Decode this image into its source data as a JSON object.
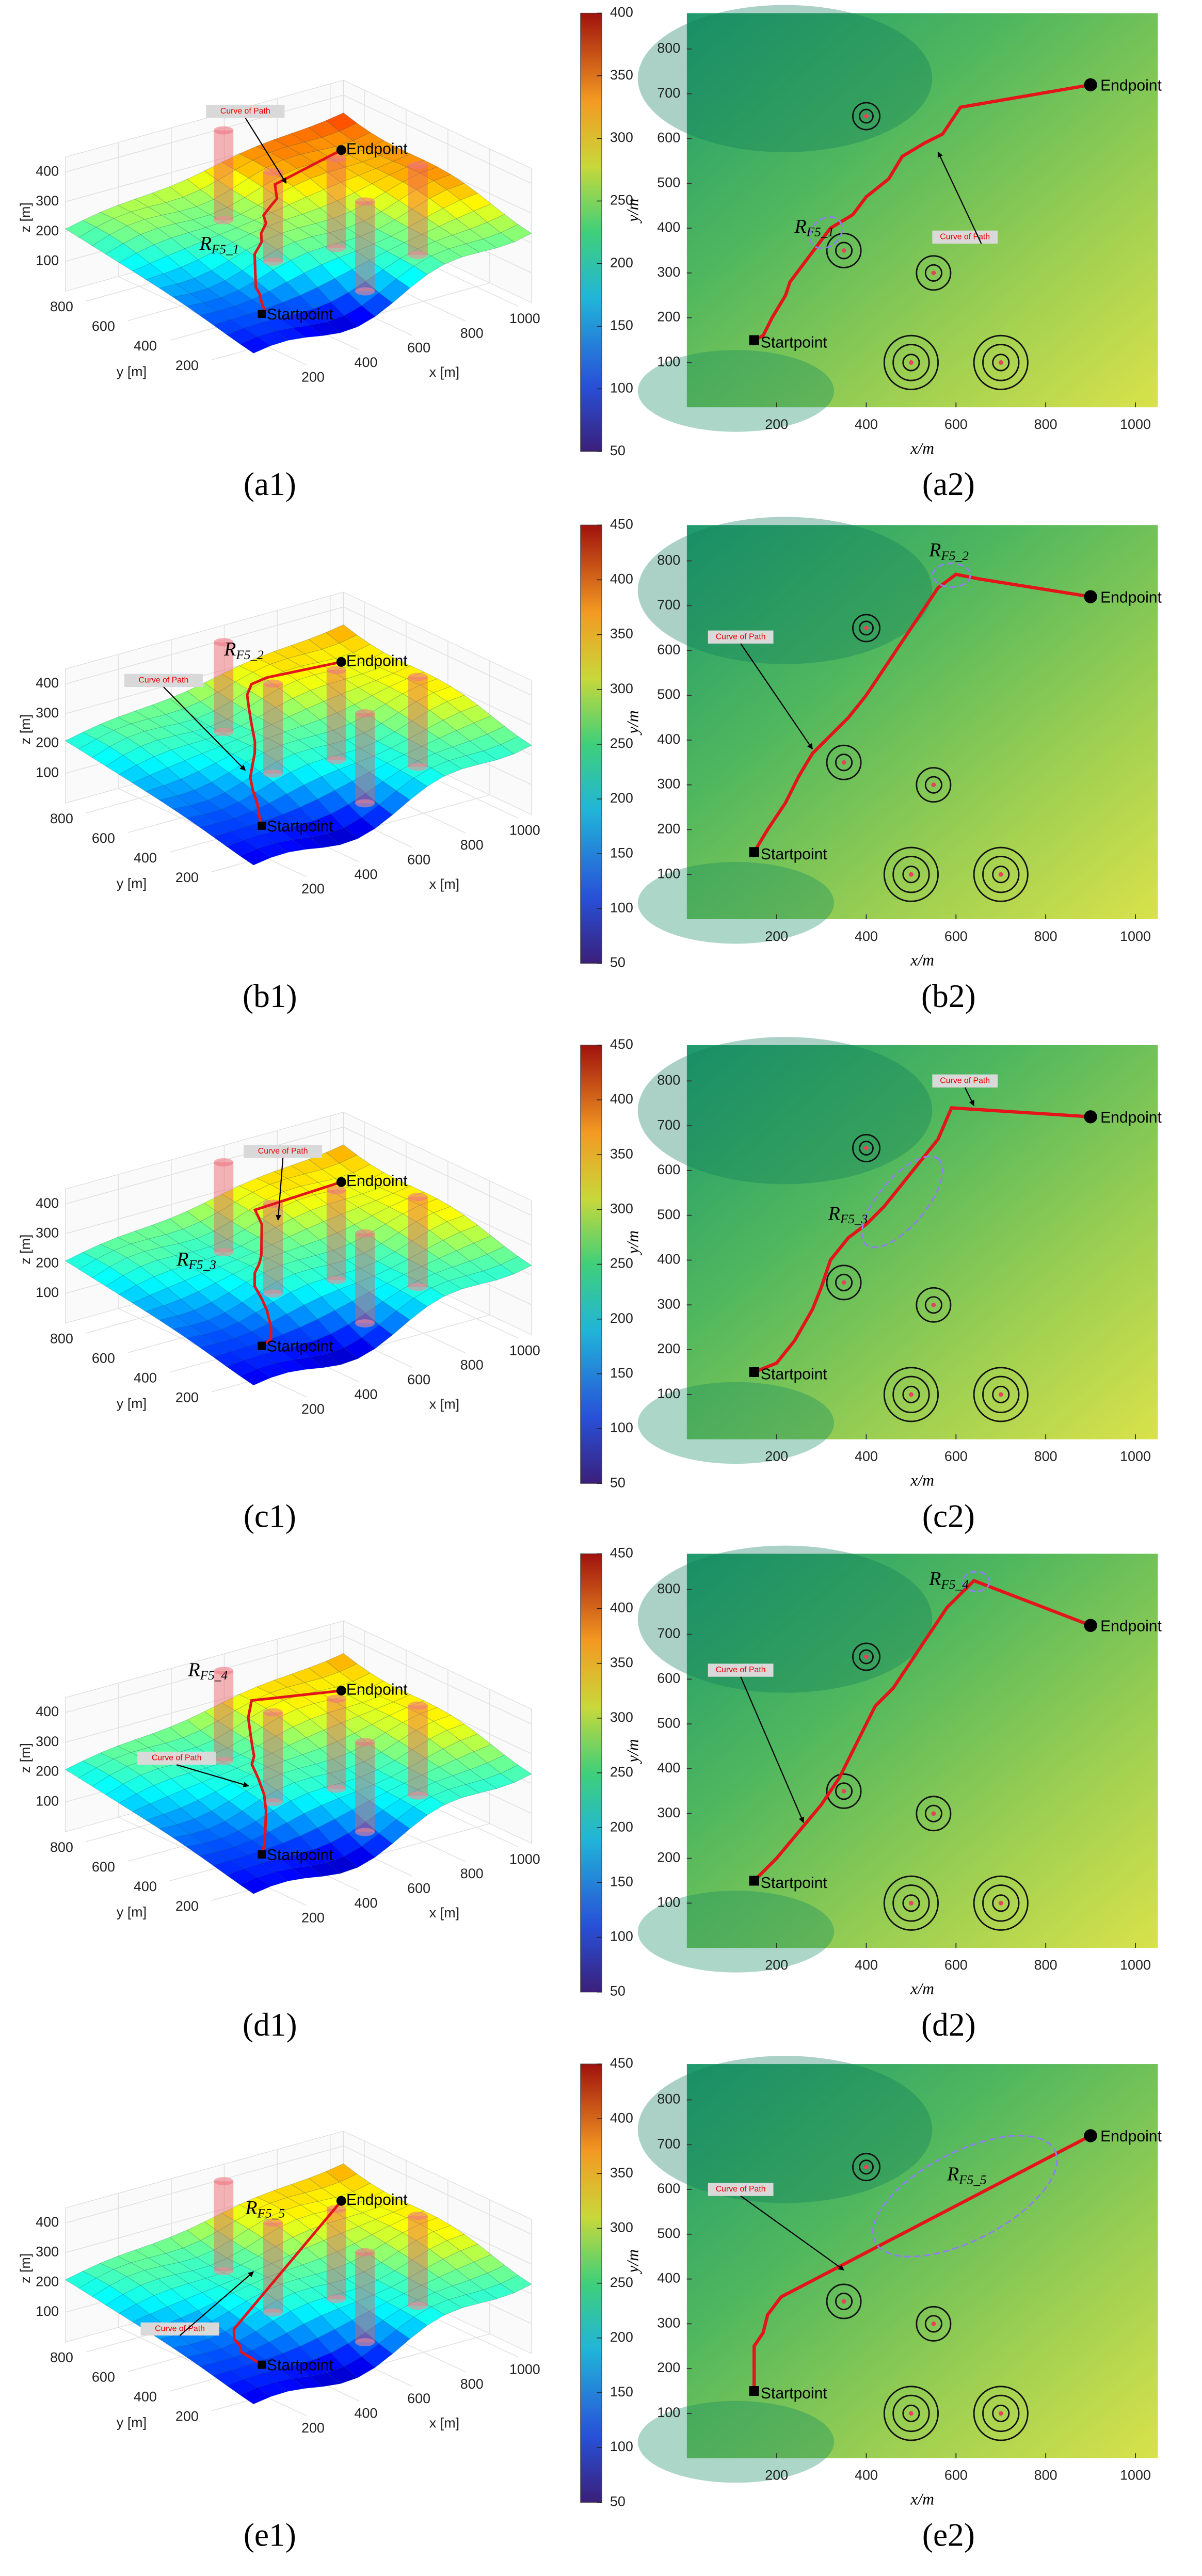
{
  "chart_data": [
    {
      "type": "surface3d",
      "caption": "(a1)",
      "xlabel": "x [m]",
      "ylabel": "y [m]",
      "zlabel": "z [m]",
      "xlim": [
        0,
        1050
      ],
      "ylim": [
        0,
        900
      ],
      "zlim": [
        0,
        450
      ],
      "xticks": [
        200,
        400,
        600,
        800,
        1000
      ],
      "yticks": [
        200,
        400,
        600,
        800
      ],
      "zticks": [
        100,
        200,
        300,
        400
      ],
      "clim": [
        50,
        400
      ],
      "colorbar_ticks": [
        50,
        100,
        150,
        200,
        250,
        300,
        350,
        400
      ],
      "start_label": "Startpoint",
      "end_label": "Endpoint",
      "curve_label": "Curve of Path",
      "highlight": "R",
      "highlight_sub": "F5_1"
    },
    {
      "type": "map2d",
      "caption": "(a2)",
      "xlabel": "x/m",
      "ylabel": "y/m",
      "xlim": [
        0,
        1050
      ],
      "ylim": [
        0,
        880
      ],
      "xticks": [
        200,
        400,
        600,
        800,
        1000
      ],
      "yticks": [
        100,
        200,
        300,
        400,
        500,
        600,
        700,
        800
      ],
      "path_x": [
        150,
        170,
        190,
        220,
        230,
        260,
        290,
        320,
        370,
        400,
        450,
        480,
        530,
        570,
        610,
        900
      ],
      "path_y": [
        150,
        160,
        200,
        250,
        280,
        320,
        360,
        400,
        430,
        470,
        510,
        560,
        590,
        610,
        670,
        720
      ],
      "threats": [
        {
          "x": 400,
          "y": 650,
          "r": [
            15,
            30
          ]
        },
        {
          "x": 350,
          "y": 350,
          "r": [
            18,
            38
          ]
        },
        {
          "x": 550,
          "y": 300,
          "r": [
            18,
            38
          ]
        },
        {
          "x": 500,
          "y": 100,
          "r": [
            18,
            40,
            60
          ]
        },
        {
          "x": 700,
          "y": 100,
          "r": [
            18,
            40,
            60
          ]
        }
      ],
      "start_label": "Startpoint",
      "end_label": "Endpoint",
      "curve_label": "Curve of Path",
      "highlight": "R",
      "highlight_sub": "F5_1"
    },
    {
      "type": "surface3d",
      "caption": "(b1)",
      "xlabel": "x [m]",
      "ylabel": "y [m]",
      "zlabel": "z [m]",
      "xlim": [
        0,
        1050
      ],
      "ylim": [
        0,
        900
      ],
      "zlim": [
        0,
        450
      ],
      "xticks": [
        200,
        400,
        600,
        800,
        1000
      ],
      "yticks": [
        200,
        400,
        600,
        800
      ],
      "zticks": [
        100,
        200,
        300,
        400
      ],
      "clim": [
        50,
        450
      ],
      "colorbar_ticks": [
        50,
        100,
        150,
        200,
        250,
        300,
        350,
        400,
        450
      ],
      "start_label": "Startpoint",
      "end_label": "Endpoint",
      "curve_label": "Curve of Path",
      "highlight": "R",
      "highlight_sub": "F5_2"
    },
    {
      "type": "map2d",
      "caption": "(b2)",
      "xlabel": "x/m",
      "ylabel": "y/m",
      "xlim": [
        0,
        1050
      ],
      "ylim": [
        0,
        880
      ],
      "xticks": [
        200,
        400,
        600,
        800,
        1000
      ],
      "yticks": [
        100,
        200,
        300,
        400,
        500,
        600,
        700,
        800
      ],
      "path_x": [
        150,
        180,
        220,
        250,
        280,
        320,
        360,
        400,
        440,
        480,
        520,
        560,
        600,
        650,
        900
      ],
      "path_y": [
        150,
        200,
        260,
        320,
        370,
        410,
        450,
        500,
        560,
        620,
        680,
        740,
        770,
        760,
        720
      ],
      "threats": [
        {
          "x": 400,
          "y": 650,
          "r": [
            15,
            30
          ]
        },
        {
          "x": 350,
          "y": 350,
          "r": [
            18,
            38
          ]
        },
        {
          "x": 550,
          "y": 300,
          "r": [
            18,
            38
          ]
        },
        {
          "x": 500,
          "y": 100,
          "r": [
            18,
            40,
            60
          ]
        },
        {
          "x": 700,
          "y": 100,
          "r": [
            18,
            40,
            60
          ]
        }
      ],
      "start_label": "Startpoint",
      "end_label": "Endpoint",
      "curve_label": "Curve of Path",
      "highlight": "R",
      "highlight_sub": "F5_2"
    },
    {
      "type": "surface3d",
      "caption": "(c1)",
      "xlabel": "x [m]",
      "ylabel": "y [m]",
      "zlabel": "z [m]",
      "xlim": [
        0,
        1050
      ],
      "ylim": [
        0,
        900
      ],
      "zlim": [
        0,
        450
      ],
      "xticks": [
        200,
        400,
        600,
        800,
        1000
      ],
      "yticks": [
        200,
        400,
        600,
        800
      ],
      "zticks": [
        100,
        200,
        300,
        400
      ],
      "clim": [
        50,
        450
      ],
      "colorbar_ticks": [
        50,
        100,
        150,
        200,
        250,
        300,
        350,
        400,
        450
      ],
      "start_label": "Startpoint",
      "end_label": "Endpoint",
      "curve_label": "Curve of Path",
      "highlight": "R",
      "highlight_sub": "F5_3"
    },
    {
      "type": "map2d",
      "caption": "(c2)",
      "xlabel": "x/m",
      "ylabel": "y/m",
      "xlim": [
        0,
        1050
      ],
      "ylim": [
        0,
        880
      ],
      "xticks": [
        200,
        400,
        600,
        800,
        1000
      ],
      "yticks": [
        100,
        200,
        300,
        400,
        500,
        600,
        700,
        800
      ],
      "path_x": [
        150,
        200,
        240,
        280,
        300,
        320,
        360,
        400,
        440,
        480,
        520,
        560,
        590,
        900
      ],
      "path_y": [
        150,
        170,
        220,
        290,
        340,
        400,
        450,
        480,
        520,
        570,
        620,
        670,
        740,
        720
      ],
      "threats": [
        {
          "x": 400,
          "y": 650,
          "r": [
            15,
            30
          ]
        },
        {
          "x": 350,
          "y": 350,
          "r": [
            18,
            38
          ]
        },
        {
          "x": 550,
          "y": 300,
          "r": [
            18,
            38
          ]
        },
        {
          "x": 500,
          "y": 100,
          "r": [
            18,
            40,
            60
          ]
        },
        {
          "x": 700,
          "y": 100,
          "r": [
            18,
            40,
            60
          ]
        }
      ],
      "start_label": "Startpoint",
      "end_label": "Endpoint",
      "curve_label": "Curve of Path",
      "highlight": "R",
      "highlight_sub": "F5_3"
    },
    {
      "type": "surface3d",
      "caption": "(d1)",
      "xlabel": "x [m]",
      "ylabel": "y [m]",
      "zlabel": "z [m]",
      "xlim": [
        0,
        1050
      ],
      "ylim": [
        0,
        900
      ],
      "zlim": [
        0,
        450
      ],
      "xticks": [
        200,
        400,
        600,
        800,
        1000
      ],
      "yticks": [
        200,
        400,
        600,
        800
      ],
      "zticks": [
        100,
        200,
        300,
        400
      ],
      "clim": [
        50,
        450
      ],
      "colorbar_ticks": [
        50,
        100,
        150,
        200,
        250,
        300,
        350,
        400,
        450
      ],
      "start_label": "Startpoint",
      "end_label": "Endpoint",
      "curve_label": "Curve of Path",
      "highlight": "R",
      "highlight_sub": "F5_4"
    },
    {
      "type": "map2d",
      "caption": "(d2)",
      "xlabel": "x/m",
      "ylabel": "y/m",
      "xlim": [
        0,
        1050
      ],
      "ylim": [
        0,
        880
      ],
      "xticks": [
        200,
        400,
        600,
        800,
        1000
      ],
      "yticks": [
        100,
        200,
        300,
        400,
        500,
        600,
        700,
        800
      ],
      "path_x": [
        150,
        200,
        250,
        300,
        340,
        380,
        420,
        460,
        500,
        540,
        580,
        640,
        900
      ],
      "path_y": [
        150,
        200,
        260,
        320,
        380,
        460,
        540,
        580,
        640,
        700,
        760,
        820,
        720
      ],
      "threats": [
        {
          "x": 400,
          "y": 650,
          "r": [
            15,
            30
          ]
        },
        {
          "x": 350,
          "y": 350,
          "r": [
            18,
            38
          ]
        },
        {
          "x": 550,
          "y": 300,
          "r": [
            18,
            38
          ]
        },
        {
          "x": 500,
          "y": 100,
          "r": [
            18,
            40,
            60
          ]
        },
        {
          "x": 700,
          "y": 100,
          "r": [
            18,
            40,
            60
          ]
        }
      ],
      "start_label": "Startpoint",
      "end_label": "Endpoint",
      "curve_label": "Curve of Path",
      "highlight": "R",
      "highlight_sub": "F5_4"
    },
    {
      "type": "surface3d",
      "caption": "(e1)",
      "xlabel": "x [m]",
      "ylabel": "y [m]",
      "zlabel": "z [m]",
      "xlim": [
        0,
        1050
      ],
      "ylim": [
        0,
        900
      ],
      "zlim": [
        0,
        450
      ],
      "xticks": [
        200,
        400,
        600,
        800,
        1000
      ],
      "yticks": [
        200,
        400,
        600,
        800
      ],
      "zticks": [
        100,
        200,
        300,
        400
      ],
      "clim": [
        50,
        450
      ],
      "colorbar_ticks": [
        50,
        100,
        150,
        200,
        250,
        300,
        350,
        400,
        450
      ],
      "start_label": "Startpoint",
      "end_label": "Endpoint",
      "curve_label": "Curve of Path",
      "highlight": "R",
      "highlight_sub": "F5_5"
    },
    {
      "type": "map2d",
      "caption": "(e2)",
      "xlabel": "x/m",
      "ylabel": "y/m",
      "xlim": [
        0,
        1050
      ],
      "ylim": [
        0,
        880
      ],
      "xticks": [
        200,
        400,
        600,
        800,
        1000
      ],
      "yticks": [
        100,
        200,
        300,
        400,
        500,
        600,
        700,
        800
      ],
      "path_x": [
        150,
        150,
        170,
        180,
        210,
        900
      ],
      "path_y": [
        150,
        250,
        280,
        320,
        360,
        720
      ],
      "threats": [
        {
          "x": 400,
          "y": 650,
          "r": [
            15,
            30
          ]
        },
        {
          "x": 350,
          "y": 350,
          "r": [
            18,
            38
          ]
        },
        {
          "x": 550,
          "y": 300,
          "r": [
            18,
            38
          ]
        },
        {
          "x": 500,
          "y": 100,
          "r": [
            18,
            40,
            60
          ]
        },
        {
          "x": 700,
          "y": 100,
          "r": [
            18,
            40,
            60
          ]
        }
      ],
      "start_label": "Startpoint",
      "end_label": "Endpoint",
      "curve_label": "Curve of Path",
      "highlight": "R",
      "highlight_sub": "F5_5"
    }
  ]
}
